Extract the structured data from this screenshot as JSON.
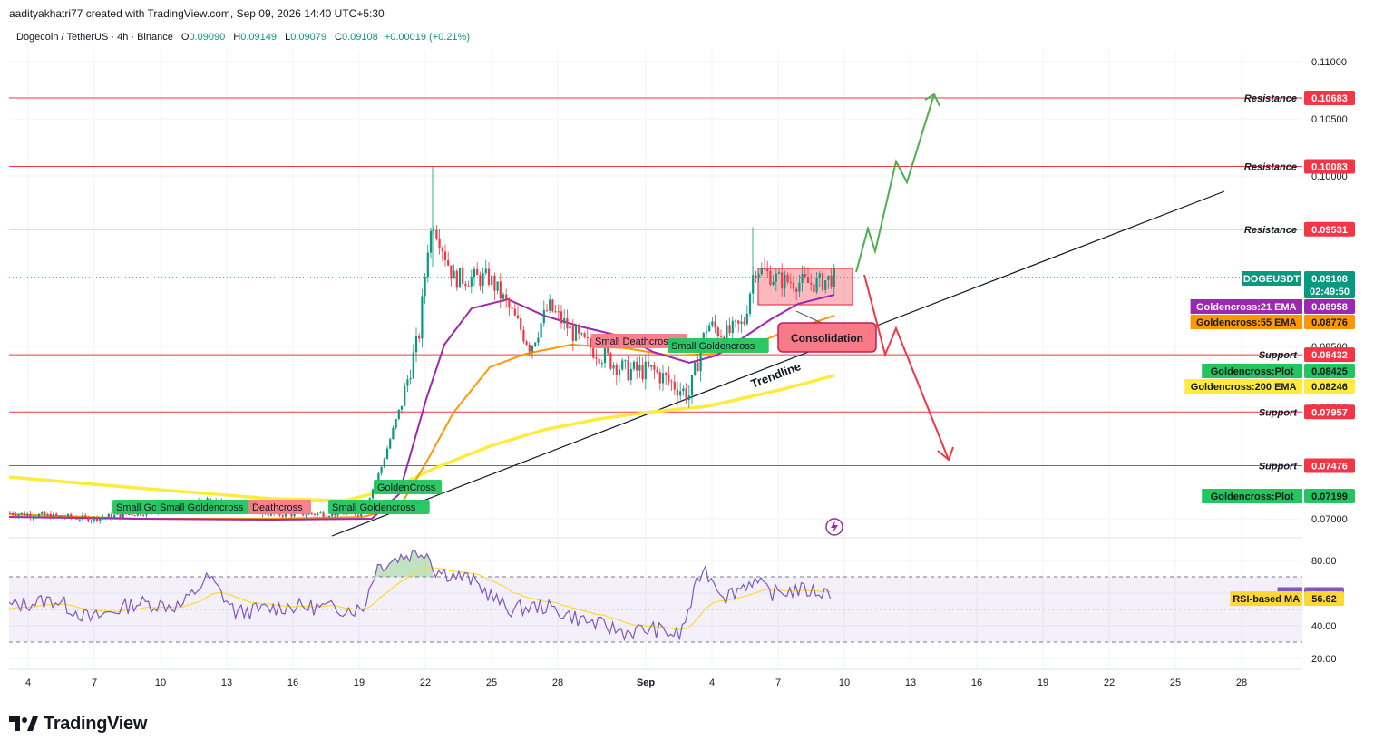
{
  "header": {
    "attribution": "aadityakhatri77 created with TradingView.com, Sep 09, 2026 14:40 UTC+5:30",
    "symbol": "Dogecoin / TetherUS · 4h · Binance",
    "ohlc": {
      "o_label": "O",
      "o": "0.09090",
      "h_label": "H",
      "h": "0.09149",
      "l_label": "L",
      "l": "0.09079",
      "c_label": "C",
      "c": "0.09108",
      "change": "+0.00019 (+0.21%)"
    }
  },
  "footer": {
    "brand": "TradingView"
  },
  "colors": {
    "up": "#089981",
    "down": "#f23645",
    "ema21": "#9c27b0",
    "ema55": "#ff9800",
    "ema200": "#ffeb3b",
    "rsi": "#7e57c2",
    "rsi_ma": "#fdd835",
    "resistance": "#f23645"
  },
  "chart_data": [
    {
      "type": "candlestick",
      "y_ticks": [
        "0.11000",
        "0.10500",
        "0.10000",
        "0.08500",
        "0.08000",
        "0.07000"
      ],
      "x_ticks": [
        "4",
        "7",
        "10",
        "13",
        "16",
        "19",
        "22",
        "25",
        "28",
        "Sep",
        "4",
        "7",
        "10",
        "13",
        "16",
        "19",
        "22",
        "25",
        "28"
      ],
      "ylim": [
        0.0672,
        0.112
      ],
      "levels": [
        {
          "label": "Resistance",
          "value": "0.10683",
          "kind": "resistance"
        },
        {
          "label": "Resistance",
          "value": "0.10083",
          "kind": "resistance"
        },
        {
          "label": "Resistance",
          "value": "0.09531",
          "kind": "resistance"
        },
        {
          "label": "Support",
          "value": "0.08432",
          "kind": "support"
        },
        {
          "label": "Support",
          "value": "0.07957",
          "kind": "support"
        },
        {
          "label": "Support",
          "value": "0.07476",
          "kind": "support"
        }
      ],
      "price_tags": [
        {
          "label": "DOGEUSDT",
          "value": "0.09108",
          "sub": "02:49:50",
          "color": "#089981"
        },
        {
          "label": "Goldencross:21 EMA",
          "value": "0.08958",
          "color": "#9c27b0"
        },
        {
          "label": "Goldencross:55 EMA",
          "value": "0.08776",
          "color": "#ff9800"
        },
        {
          "label": "Goldencross:Plot",
          "value": "0.08425",
          "color": "#22c55e"
        },
        {
          "label": "Goldencross:200 EMA",
          "value": "0.08246",
          "color": "#ffeb3b"
        },
        {
          "label": "Goldencross:Plot",
          "value": "0.07199",
          "color": "#22c55e"
        }
      ],
      "annotations": {
        "consolidation": "Consolidation",
        "trendline": "Trendline",
        "signals": [
          {
            "text": "Small Goldencross",
            "kind": "golden"
          },
          {
            "text": "Small Goldencross",
            "kind": "golden"
          },
          {
            "text": "Deathcross",
            "kind": "death"
          },
          {
            "text": "Small Goldencross",
            "kind": "golden"
          },
          {
            "text": "GoldenCross",
            "kind": "golden"
          },
          {
            "text": "Small Deathcross",
            "kind": "death"
          },
          {
            "text": "Small Goldencross",
            "kind": "golden"
          }
        ]
      },
      "series": [
        {
          "name": "Goldencross:21 EMA"
        },
        {
          "name": "Goldencross:55 EMA"
        },
        {
          "name": "Goldencross:200 EMA"
        }
      ]
    },
    {
      "type": "line",
      "y_ticks": [
        "80.00",
        "60.00",
        "40.00",
        "20.00"
      ],
      "ylim": [
        12,
        92
      ],
      "bands": [
        70,
        30
      ],
      "series": [
        {
          "name": "RSI",
          "value": "59.17",
          "color": "#7e57c2"
        },
        {
          "name": "RSI-based MA",
          "value": "56.62",
          "color": "#fdd835"
        }
      ]
    }
  ]
}
